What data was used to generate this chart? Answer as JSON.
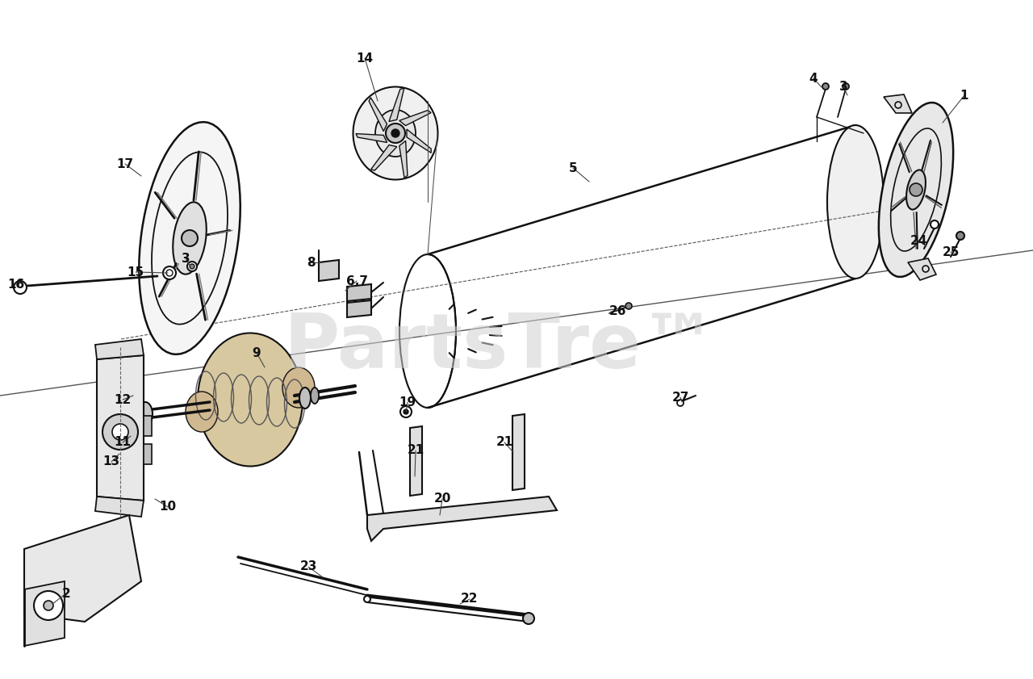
{
  "bg_color": "#ffffff",
  "lc": "#111111",
  "wm_color": "#d0d0d0",
  "wm_text": "PartsTre™",
  "label_fs": 11,
  "label_color": "#111111",
  "parts_labels": [
    [
      "1",
      1195,
      118
    ],
    [
      "2",
      82,
      735
    ],
    [
      "3",
      230,
      320
    ],
    [
      "3",
      1045,
      107
    ],
    [
      "4",
      1008,
      97
    ],
    [
      "5",
      710,
      208
    ],
    [
      "6,7",
      442,
      348
    ],
    [
      "8",
      385,
      325
    ],
    [
      "9",
      318,
      437
    ],
    [
      "10",
      208,
      628
    ],
    [
      "11",
      152,
      548
    ],
    [
      "12",
      152,
      495
    ],
    [
      "13",
      138,
      572
    ],
    [
      "14",
      452,
      72
    ],
    [
      "15",
      168,
      337
    ],
    [
      "16",
      20,
      352
    ],
    [
      "17",
      155,
      203
    ],
    [
      "19",
      505,
      498
    ],
    [
      "20",
      548,
      618
    ],
    [
      "21",
      515,
      558
    ],
    [
      "21",
      625,
      548
    ],
    [
      "22",
      582,
      742
    ],
    [
      "23",
      382,
      702
    ],
    [
      "24",
      1138,
      298
    ],
    [
      "25",
      1178,
      312
    ],
    [
      "26",
      765,
      385
    ],
    [
      "27",
      843,
      492
    ]
  ]
}
